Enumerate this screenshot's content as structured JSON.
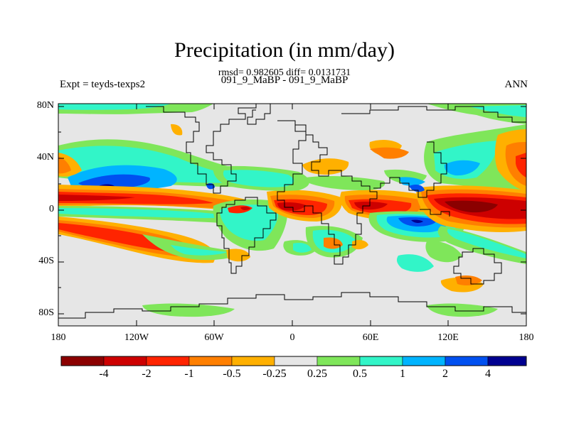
{
  "title": "Precipitation (in mm/day)",
  "stats": "rmsd= 0.982605 diff= 0.0131731",
  "subtitle": "091_9_MaBP - 091_9_MaBP",
  "expt_label": "Expt = teyds-texps2",
  "period_label": "ANN",
  "axes": {
    "y_ticks": [
      "80N",
      "40N",
      "0",
      "40S",
      "80S"
    ],
    "x_ticks": [
      "180",
      "120W",
      "60W",
      "0",
      "60E",
      "120E",
      "180"
    ]
  },
  "colorbar": {
    "colors": [
      "#8b0000",
      "#cd0000",
      "#ff2400",
      "#ff7f00",
      "#ffb000",
      "#e6e6e6",
      "#7fe65a",
      "#32f5c8",
      "#00b4ff",
      "#0050f0",
      "#000090"
    ],
    "labels": [
      "-4",
      "-2",
      "-1",
      "-0.5",
      "-0.25",
      "0.25",
      "0.5",
      "1",
      "2",
      "4"
    ]
  },
  "map": {
    "background_color": "#e6e6e6",
    "coastline_color": "#000000"
  }
}
